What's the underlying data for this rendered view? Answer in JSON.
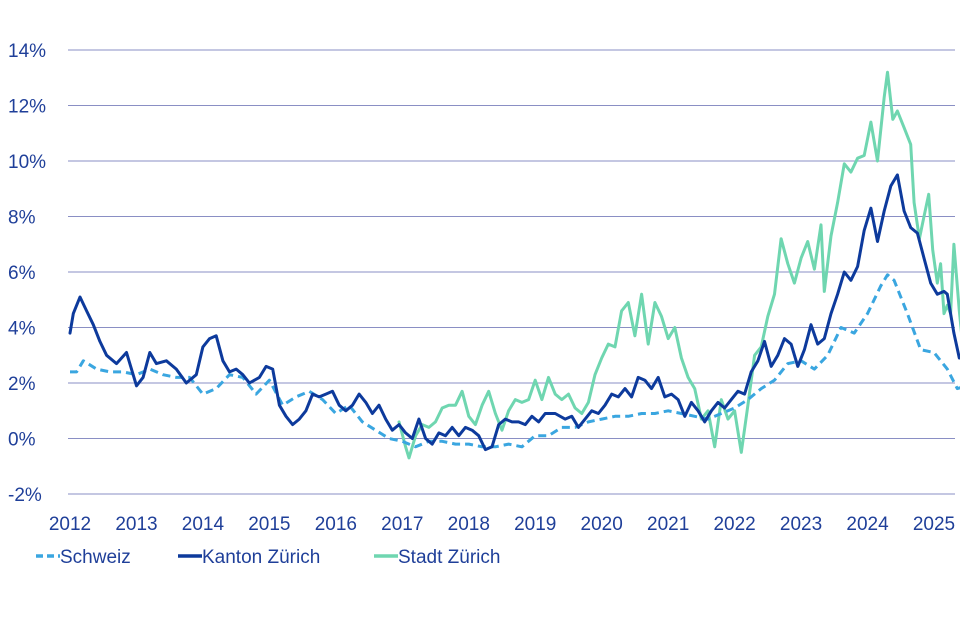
{
  "chart_data": {
    "type": "line",
    "title": "",
    "xlabel": "",
    "ylabel": "",
    "ylim": [
      -2,
      14
    ],
    "xlim": [
      2012.0,
      2025.5
    ],
    "y_ticks": [
      -2,
      0,
      2,
      4,
      6,
      8,
      10,
      12,
      14
    ],
    "y_tick_labels": [
      "-2%",
      "0%",
      "2%",
      "4%",
      "6%",
      "8%",
      "10%",
      "12%",
      "14%"
    ],
    "x_ticks": [
      2012,
      2013,
      2014,
      2015,
      2016,
      2017,
      2018,
      2019,
      2020,
      2021,
      2022,
      2023,
      2024,
      2025
    ],
    "x_tick_labels": [
      "2012",
      "2013",
      "2014",
      "2015",
      "2016",
      "2017",
      "2018",
      "2019",
      "2020",
      "2021",
      "2022",
      "2023",
      "2024",
      "2025"
    ],
    "grid": true,
    "legend_position": "bottom-left",
    "series": [
      {
        "name": "Schweiz",
        "color": "#3aa6e0",
        "dash": "dashed",
        "points": [
          [
            2012.0,
            2.4
          ],
          [
            2012.1,
            2.4
          ],
          [
            2012.2,
            2.8
          ],
          [
            2012.4,
            2.5
          ],
          [
            2012.6,
            2.4
          ],
          [
            2012.8,
            2.4
          ],
          [
            2013.0,
            2.3
          ],
          [
            2013.2,
            2.5
          ],
          [
            2013.4,
            2.3
          ],
          [
            2013.6,
            2.2
          ],
          [
            2013.8,
            2.2
          ],
          [
            2014.0,
            1.6
          ],
          [
            2014.2,
            1.8
          ],
          [
            2014.4,
            2.3
          ],
          [
            2014.6,
            2.2
          ],
          [
            2014.8,
            1.6
          ],
          [
            2015.0,
            2.1
          ],
          [
            2015.2,
            1.2
          ],
          [
            2015.4,
            1.5
          ],
          [
            2015.6,
            1.7
          ],
          [
            2015.8,
            1.4
          ],
          [
            2016.0,
            0.9
          ],
          [
            2016.2,
            1.2
          ],
          [
            2016.4,
            0.6
          ],
          [
            2016.6,
            0.3
          ],
          [
            2016.8,
            0.0
          ],
          [
            2017.0,
            -0.1
          ],
          [
            2017.2,
            -0.3
          ],
          [
            2017.4,
            -0.1
          ],
          [
            2017.6,
            -0.1
          ],
          [
            2017.8,
            -0.2
          ],
          [
            2018.0,
            -0.2
          ],
          [
            2018.2,
            -0.3
          ],
          [
            2018.4,
            -0.3
          ],
          [
            2018.6,
            -0.2
          ],
          [
            2018.8,
            -0.3
          ],
          [
            2019.0,
            0.1
          ],
          [
            2019.2,
            0.1
          ],
          [
            2019.4,
            0.4
          ],
          [
            2019.6,
            0.4
          ],
          [
            2019.8,
            0.6
          ],
          [
            2020.0,
            0.7
          ],
          [
            2020.2,
            0.8
          ],
          [
            2020.4,
            0.8
          ],
          [
            2020.6,
            0.9
          ],
          [
            2020.8,
            0.9
          ],
          [
            2021.0,
            1.0
          ],
          [
            2021.2,
            0.9
          ],
          [
            2021.4,
            0.8
          ],
          [
            2021.6,
            0.7
          ],
          [
            2021.8,
            0.9
          ],
          [
            2022.0,
            1.1
          ],
          [
            2022.2,
            1.4
          ],
          [
            2022.4,
            1.8
          ],
          [
            2022.6,
            2.1
          ],
          [
            2022.8,
            2.7
          ],
          [
            2023.0,
            2.8
          ],
          [
            2023.2,
            2.5
          ],
          [
            2023.4,
            3.0
          ],
          [
            2023.6,
            4.0
          ],
          [
            2023.8,
            3.8
          ],
          [
            2024.0,
            4.5
          ],
          [
            2024.2,
            5.5
          ],
          [
            2024.3,
            5.9
          ],
          [
            2024.4,
            5.7
          ],
          [
            2024.6,
            4.5
          ],
          [
            2024.8,
            3.2
          ],
          [
            2025.0,
            3.1
          ],
          [
            2025.2,
            2.5
          ],
          [
            2025.35,
            1.8
          ],
          [
            2025.5,
            1.9
          ]
        ]
      },
      {
        "name": "Kanton Zürich",
        "color": "#0d3a9c",
        "dash": "solid",
        "points": [
          [
            2012.0,
            3.8
          ],
          [
            2012.05,
            4.5
          ],
          [
            2012.15,
            5.1
          ],
          [
            2012.25,
            4.6
          ],
          [
            2012.35,
            4.1
          ],
          [
            2012.45,
            3.5
          ],
          [
            2012.55,
            3.0
          ],
          [
            2012.7,
            2.7
          ],
          [
            2012.85,
            3.1
          ],
          [
            2013.0,
            1.9
          ],
          [
            2013.1,
            2.2
          ],
          [
            2013.2,
            3.1
          ],
          [
            2013.3,
            2.7
          ],
          [
            2013.45,
            2.8
          ],
          [
            2013.6,
            2.5
          ],
          [
            2013.75,
            2.0
          ],
          [
            2013.9,
            2.3
          ],
          [
            2014.0,
            3.3
          ],
          [
            2014.1,
            3.6
          ],
          [
            2014.2,
            3.7
          ],
          [
            2014.3,
            2.8
          ],
          [
            2014.4,
            2.4
          ],
          [
            2014.5,
            2.5
          ],
          [
            2014.6,
            2.3
          ],
          [
            2014.7,
            2.0
          ],
          [
            2014.85,
            2.2
          ],
          [
            2014.95,
            2.6
          ],
          [
            2015.05,
            2.5
          ],
          [
            2015.15,
            1.2
          ],
          [
            2015.25,
            0.8
          ],
          [
            2015.35,
            0.5
          ],
          [
            2015.45,
            0.7
          ],
          [
            2015.55,
            1.0
          ],
          [
            2015.65,
            1.6
          ],
          [
            2015.75,
            1.5
          ],
          [
            2015.85,
            1.6
          ],
          [
            2015.95,
            1.7
          ],
          [
            2016.05,
            1.2
          ],
          [
            2016.15,
            1.0
          ],
          [
            2016.25,
            1.2
          ],
          [
            2016.35,
            1.6
          ],
          [
            2016.45,
            1.3
          ],
          [
            2016.55,
            0.9
          ],
          [
            2016.65,
            1.2
          ],
          [
            2016.75,
            0.7
          ],
          [
            2016.85,
            0.3
          ],
          [
            2016.95,
            0.5
          ],
          [
            2017.05,
            0.2
          ],
          [
            2017.15,
            0.0
          ],
          [
            2017.25,
            0.7
          ],
          [
            2017.35,
            0.0
          ],
          [
            2017.45,
            -0.2
          ],
          [
            2017.55,
            0.2
          ],
          [
            2017.65,
            0.1
          ],
          [
            2017.75,
            0.4
          ],
          [
            2017.85,
            0.1
          ],
          [
            2017.95,
            0.4
          ],
          [
            2018.05,
            0.3
          ],
          [
            2018.15,
            0.1
          ],
          [
            2018.25,
            -0.4
          ],
          [
            2018.35,
            -0.3
          ],
          [
            2018.45,
            0.5
          ],
          [
            2018.55,
            0.7
          ],
          [
            2018.65,
            0.6
          ],
          [
            2018.75,
            0.6
          ],
          [
            2018.85,
            0.5
          ],
          [
            2018.95,
            0.8
          ],
          [
            2019.05,
            0.6
          ],
          [
            2019.15,
            0.9
          ],
          [
            2019.3,
            0.9
          ],
          [
            2019.45,
            0.7
          ],
          [
            2019.55,
            0.8
          ],
          [
            2019.65,
            0.4
          ],
          [
            2019.75,
            0.7
          ],
          [
            2019.85,
            1.0
          ],
          [
            2019.95,
            0.9
          ],
          [
            2020.05,
            1.2
          ],
          [
            2020.15,
            1.6
          ],
          [
            2020.25,
            1.5
          ],
          [
            2020.35,
            1.8
          ],
          [
            2020.45,
            1.5
          ],
          [
            2020.55,
            2.2
          ],
          [
            2020.65,
            2.1
          ],
          [
            2020.75,
            1.8
          ],
          [
            2020.85,
            2.2
          ],
          [
            2020.95,
            1.5
          ],
          [
            2021.05,
            1.6
          ],
          [
            2021.15,
            1.4
          ],
          [
            2021.25,
            0.8
          ],
          [
            2021.35,
            1.3
          ],
          [
            2021.45,
            1.0
          ],
          [
            2021.55,
            0.6
          ],
          [
            2021.65,
            1.0
          ],
          [
            2021.75,
            1.3
          ],
          [
            2021.85,
            1.1
          ],
          [
            2021.95,
            1.4
          ],
          [
            2022.05,
            1.7
          ],
          [
            2022.15,
            1.6
          ],
          [
            2022.25,
            2.4
          ],
          [
            2022.35,
            2.8
          ],
          [
            2022.45,
            3.5
          ],
          [
            2022.55,
            2.6
          ],
          [
            2022.65,
            3.0
          ],
          [
            2022.75,
            3.6
          ],
          [
            2022.85,
            3.4
          ],
          [
            2022.95,
            2.6
          ],
          [
            2023.05,
            3.2
          ],
          [
            2023.15,
            4.1
          ],
          [
            2023.25,
            3.4
          ],
          [
            2023.35,
            3.6
          ],
          [
            2023.45,
            4.5
          ],
          [
            2023.55,
            5.2
          ],
          [
            2023.65,
            6.0
          ],
          [
            2023.75,
            5.7
          ],
          [
            2023.85,
            6.2
          ],
          [
            2023.95,
            7.5
          ],
          [
            2024.05,
            8.3
          ],
          [
            2024.15,
            7.1
          ],
          [
            2024.25,
            8.2
          ],
          [
            2024.35,
            9.1
          ],
          [
            2024.45,
            9.5
          ],
          [
            2024.55,
            8.2
          ],
          [
            2024.65,
            7.6
          ],
          [
            2024.75,
            7.4
          ],
          [
            2024.85,
            6.5
          ],
          [
            2024.95,
            5.6
          ],
          [
            2025.05,
            5.2
          ],
          [
            2025.15,
            5.3
          ],
          [
            2025.2,
            5.2
          ],
          [
            2025.3,
            3.8
          ],
          [
            2025.38,
            2.9
          ],
          [
            2025.45,
            3.0
          ],
          [
            2025.52,
            2.1
          ]
        ]
      },
      {
        "name": "Stadt Zürich",
        "color": "#6fd6b0",
        "dash": "solid",
        "points": [
          [
            2016.95,
            0.6
          ],
          [
            2017.05,
            -0.3
          ],
          [
            2017.1,
            -0.7
          ],
          [
            2017.2,
            0.1
          ],
          [
            2017.3,
            0.5
          ],
          [
            2017.4,
            0.4
          ],
          [
            2017.5,
            0.6
          ],
          [
            2017.6,
            1.1
          ],
          [
            2017.7,
            1.2
          ],
          [
            2017.8,
            1.2
          ],
          [
            2017.9,
            1.7
          ],
          [
            2018.0,
            0.8
          ],
          [
            2018.1,
            0.5
          ],
          [
            2018.2,
            1.2
          ],
          [
            2018.3,
            1.7
          ],
          [
            2018.4,
            0.9
          ],
          [
            2018.5,
            0.3
          ],
          [
            2018.6,
            1.0
          ],
          [
            2018.7,
            1.4
          ],
          [
            2018.8,
            1.3
          ],
          [
            2018.9,
            1.4
          ],
          [
            2019.0,
            2.1
          ],
          [
            2019.1,
            1.4
          ],
          [
            2019.2,
            2.2
          ],
          [
            2019.3,
            1.6
          ],
          [
            2019.4,
            1.4
          ],
          [
            2019.5,
            1.6
          ],
          [
            2019.6,
            1.1
          ],
          [
            2019.7,
            0.9
          ],
          [
            2019.8,
            1.3
          ],
          [
            2019.9,
            2.3
          ],
          [
            2020.0,
            2.9
          ],
          [
            2020.1,
            3.4
          ],
          [
            2020.2,
            3.3
          ],
          [
            2020.3,
            4.6
          ],
          [
            2020.4,
            4.9
          ],
          [
            2020.5,
            3.7
          ],
          [
            2020.6,
            5.2
          ],
          [
            2020.7,
            3.4
          ],
          [
            2020.8,
            4.9
          ],
          [
            2020.9,
            4.4
          ],
          [
            2021.0,
            3.6
          ],
          [
            2021.1,
            4.0
          ],
          [
            2021.2,
            2.9
          ],
          [
            2021.3,
            2.2
          ],
          [
            2021.4,
            1.8
          ],
          [
            2021.5,
            0.7
          ],
          [
            2021.6,
            1.0
          ],
          [
            2021.7,
            -0.3
          ],
          [
            2021.8,
            1.4
          ],
          [
            2021.9,
            0.7
          ],
          [
            2022.0,
            1.0
          ],
          [
            2022.1,
            -0.5
          ],
          [
            2022.2,
            1.2
          ],
          [
            2022.3,
            3.0
          ],
          [
            2022.4,
            3.3
          ],
          [
            2022.5,
            4.4
          ],
          [
            2022.6,
            5.2
          ],
          [
            2022.7,
            7.2
          ],
          [
            2022.8,
            6.3
          ],
          [
            2022.9,
            5.6
          ],
          [
            2023.0,
            6.5
          ],
          [
            2023.1,
            7.1
          ],
          [
            2023.2,
            6.1
          ],
          [
            2023.3,
            7.7
          ],
          [
            2023.35,
            5.3
          ],
          [
            2023.45,
            7.3
          ],
          [
            2023.55,
            8.5
          ],
          [
            2023.65,
            9.9
          ],
          [
            2023.75,
            9.6
          ],
          [
            2023.85,
            10.1
          ],
          [
            2023.95,
            10.2
          ],
          [
            2024.05,
            11.4
          ],
          [
            2024.15,
            10.0
          ],
          [
            2024.25,
            12.3
          ],
          [
            2024.3,
            13.2
          ],
          [
            2024.38,
            11.5
          ],
          [
            2024.45,
            11.8
          ],
          [
            2024.55,
            11.2
          ],
          [
            2024.65,
            10.6
          ],
          [
            2024.7,
            8.5
          ],
          [
            2024.78,
            7.2
          ],
          [
            2024.85,
            8.0
          ],
          [
            2024.92,
            8.8
          ],
          [
            2024.98,
            6.8
          ],
          [
            2025.05,
            5.6
          ],
          [
            2025.1,
            6.3
          ],
          [
            2025.15,
            4.5
          ],
          [
            2025.2,
            4.8
          ],
          [
            2025.25,
            4.5
          ],
          [
            2025.3,
            7.0
          ],
          [
            2025.38,
            4.6
          ],
          [
            2025.44,
            3.2
          ],
          [
            2025.48,
            4.3
          ],
          [
            2025.52,
            3.5
          ]
        ]
      }
    ]
  }
}
